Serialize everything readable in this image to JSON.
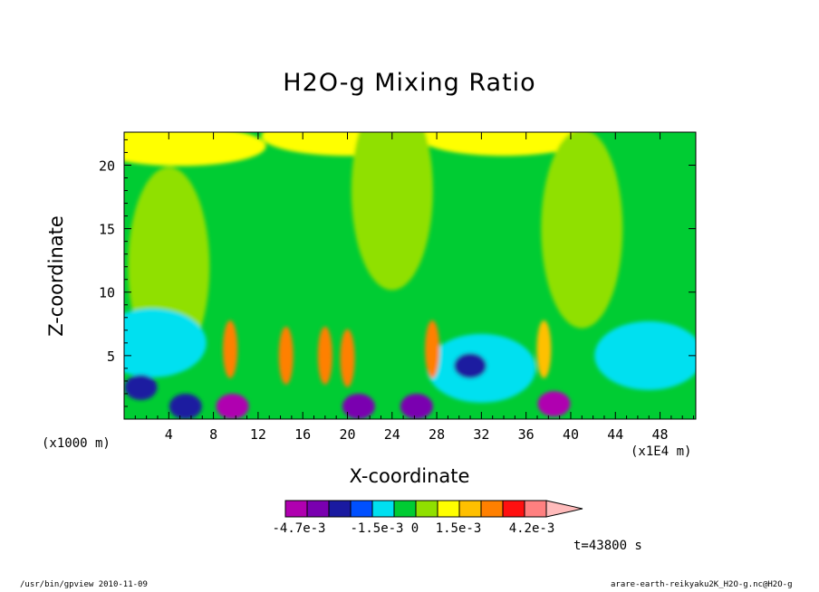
{
  "app": {
    "footer_left": "/usr/bin/gpview   2010-11-09",
    "footer_right": "arare-earth-reikyaku2K_H2O-g.nc@H2O-g"
  },
  "chart_data": {
    "type": "heatmap",
    "title": "H2O-g Mixing Ratio",
    "xlabel": "X-coordinate",
    "ylabel": "Z-coordinate",
    "x_unit_label": "(x1000 m)",
    "x_multiplier_label": "(x1E4 m)",
    "x_ticks": [
      4,
      8,
      12,
      16,
      20,
      24,
      28,
      32,
      36,
      40,
      44,
      48
    ],
    "y_ticks": [
      5,
      10,
      15,
      20
    ],
    "xlim": [
      0,
      51.2
    ],
    "ylim": [
      0,
      22.6
    ],
    "time_label": "t=43800 s",
    "colorbar": {
      "colors": [
        "#b000b0",
        "#7a00b0",
        "#1a1aa0",
        "#0050ff",
        "#00e0f0",
        "#00cc33",
        "#90e000",
        "#ffff00",
        "#ffc000",
        "#ff8000",
        "#ff1010",
        "#ff8080",
        "#ffbbbb"
      ],
      "labels": [
        "-4.7e-3",
        "-1.5e-3",
        "0",
        "1.5e-3",
        "4.2e-3"
      ],
      "extend": "max"
    },
    "anomaly_features": [
      {
        "kind": "moist_background",
        "level": 5,
        "x": 25.6,
        "z": 7
      },
      {
        "kind": "moist_layer_top",
        "level": 7,
        "x": 5,
        "z": 21.5
      },
      {
        "kind": "moist_layer_top",
        "level": 7,
        "x": 20,
        "z": 22.3
      },
      {
        "kind": "moist_layer_top",
        "level": 7,
        "x": 34,
        "z": 22.3
      },
      {
        "kind": "dry_tongue",
        "level": 6,
        "x": 4,
        "z": 12
      },
      {
        "kind": "dry_tongue",
        "level": 6,
        "x": 24,
        "z": 18
      },
      {
        "kind": "dry_tongue",
        "level": 6,
        "x": 41,
        "z": 15
      },
      {
        "kind": "boundary_layer",
        "level": 4,
        "x": 2.5,
        "z": 6
      },
      {
        "kind": "boundary_layer",
        "level": 4,
        "x": 47,
        "z": 5
      },
      {
        "kind": "boundary_layer",
        "level": 4,
        "x": 32,
        "z": 4
      },
      {
        "kind": "plume",
        "level": 9,
        "x": 9.5,
        "z": 5.5
      },
      {
        "kind": "plume",
        "level": 9,
        "x": 14.5,
        "z": 5
      },
      {
        "kind": "plume",
        "level": 9,
        "x": 18,
        "z": 5
      },
      {
        "kind": "plume",
        "level": 9,
        "x": 20,
        "z": 4.8
      },
      {
        "kind": "plume",
        "level": 9,
        "x": 27.6,
        "z": 5.5
      },
      {
        "kind": "plume",
        "level": 8,
        "x": 37.6,
        "z": 5.5
      },
      {
        "kind": "dry_pocket",
        "level": 2,
        "x": 31,
        "z": 4.2
      },
      {
        "kind": "dry_pocket",
        "level": 2,
        "x": 1.5,
        "z": 2.5
      },
      {
        "kind": "dry_pocket",
        "level": 0,
        "x": 9.7,
        "z": 1
      },
      {
        "kind": "dry_pocket",
        "level": 1,
        "x": 21,
        "z": 1
      },
      {
        "kind": "dry_pocket",
        "level": 1,
        "x": 26.2,
        "z": 1
      },
      {
        "kind": "dry_pocket",
        "level": 0,
        "x": 38.5,
        "z": 1.2
      },
      {
        "kind": "dry_pocket",
        "level": 2,
        "x": 5.5,
        "z": 1
      }
    ]
  }
}
